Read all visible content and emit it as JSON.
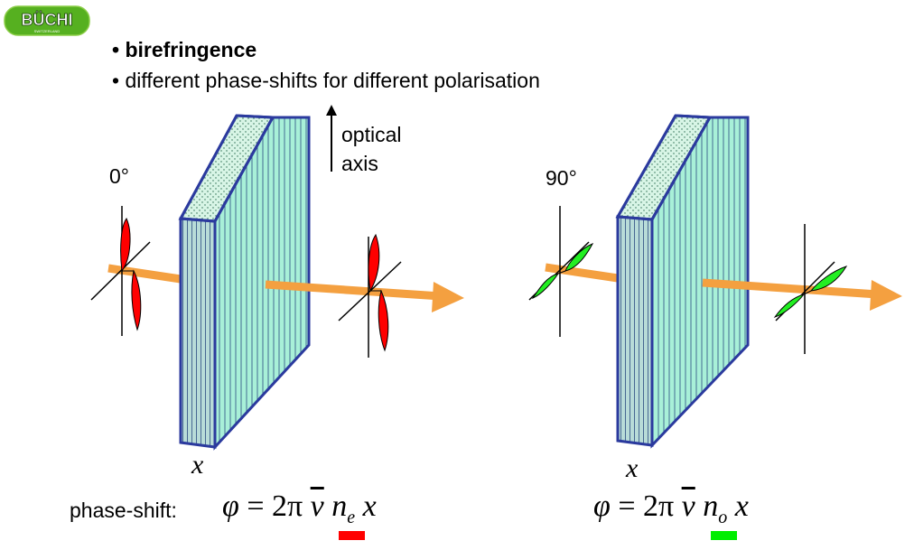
{
  "logo": {
    "text": "BÜCHI",
    "subtext": "SWITZERLAND"
  },
  "bullets": [
    {
      "text": "• birefringence"
    },
    {
      "text": "• different phase-shifts for different polarisation"
    }
  ],
  "axis_label": {
    "line1": "optical",
    "line2": "axis"
  },
  "left": {
    "angle": "0°",
    "thickness": "x",
    "prefix": "phase-shift:",
    "formula": {
      "phi": "φ",
      "eq": " = 2π ",
      "nu": "ν",
      "n": "n",
      "sub": "e",
      "x": "x"
    },
    "wave_color": "#ff0000",
    "marker_color": "#ff0000"
  },
  "right": {
    "angle": "90°",
    "thickness": "x",
    "formula": {
      "phi": "φ",
      "eq": " = 2π ",
      "nu": "ν",
      "n": "n",
      "sub": "o",
      "x": "x"
    },
    "wave_color": "#22ee22",
    "marker_color": "#00ee00"
  },
  "colors": {
    "beam": "#f4a040",
    "plate_outline": "#2b3a9e",
    "plate_front": "#b8dcd8",
    "plate_side": "#a8f0d8",
    "plate_top": "#d8f5e6",
    "logo_green": "#56b020"
  }
}
